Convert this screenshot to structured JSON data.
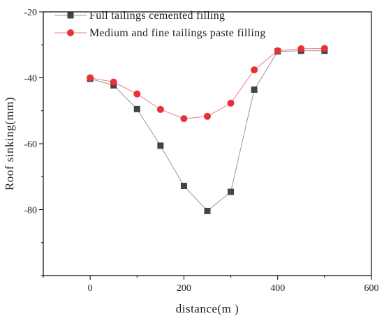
{
  "chart_data": {
    "type": "line",
    "title": "",
    "xlabel": "distance(m )",
    "ylabel": "Roof sinking(mm)",
    "xlim": [
      -100,
      600
    ],
    "ylim": [
      -100,
      -20
    ],
    "xticks": [
      0,
      200,
      400,
      600
    ],
    "yticks": [
      -80,
      -60,
      -40,
      -20
    ],
    "x_tick_labels": [
      "0",
      "200",
      "400",
      "600"
    ],
    "y_tick_labels": [
      "-80",
      "-60",
      "-40",
      "-20"
    ],
    "grid": false,
    "legend_position": "top-left",
    "x": [
      0,
      50,
      100,
      150,
      200,
      250,
      300,
      350,
      400,
      450,
      500
    ],
    "series": [
      {
        "name": "Full tailings cemented filling",
        "marker": "square",
        "color": "#444444",
        "line_color": "#999999",
        "values": [
          -40.3,
          -42.3,
          -49.5,
          -60.6,
          -72.8,
          -80.4,
          -74.6,
          -43.6,
          -32.0,
          -31.8,
          -31.8
        ]
      },
      {
        "name": "Medium and fine tailings paste filling",
        "marker": "circle",
        "color": "#e8303a",
        "line_color": "#f07b80",
        "values": [
          -40.0,
          -41.3,
          -44.9,
          -49.6,
          -52.4,
          -51.7,
          -47.7,
          -37.6,
          -31.8,
          -31.2,
          -31.1
        ]
      }
    ]
  }
}
